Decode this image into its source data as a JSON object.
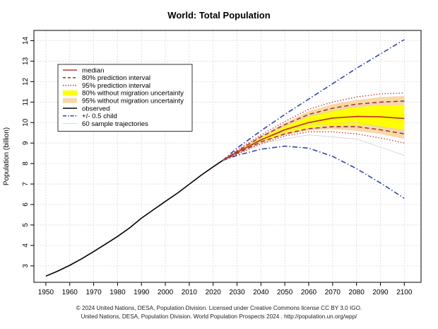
{
  "chart_data": {
    "type": "line",
    "title": "World: Total Population",
    "xlabel": "",
    "ylabel": "Population (billion)",
    "xlim": [
      1945,
      2107
    ],
    "ylim": [
      2.2,
      14.5
    ],
    "x_ticks": [
      1950,
      1960,
      1970,
      1980,
      1990,
      2000,
      2010,
      2020,
      2030,
      2040,
      2050,
      2060,
      2070,
      2080,
      2090,
      2100
    ],
    "y_ticks": [
      3,
      4,
      5,
      6,
      7,
      8,
      9,
      10,
      11,
      12,
      13,
      14
    ],
    "grid": true,
    "legend_position": "top-left",
    "colors": {
      "median": "#c0392b",
      "pi80": "#a0281e",
      "pi95": "#c0392b",
      "band80": "#ffff00",
      "band95": "#f9d7a6",
      "observed": "#000000",
      "half_child": "#3344aa",
      "trajectories": "#cccccc"
    },
    "legend": [
      {
        "label": "median",
        "style": "solid",
        "key": "median"
      },
      {
        "label": "80% prediction interval",
        "style": "dashed",
        "key": "pi80"
      },
      {
        "label": "95% prediction interval",
        "style": "dotted",
        "key": "pi95"
      },
      {
        "label": "80% without migration uncertainty",
        "style": "band",
        "key": "band80"
      },
      {
        "label": "95% without migration uncertainty",
        "style": "band",
        "key": "band95"
      },
      {
        "label": "observed",
        "style": "solid",
        "key": "observed"
      },
      {
        "label": "+/- 0.5 child",
        "style": "dashdot",
        "key": "half_child"
      },
      {
        "label": "60 sample trajectories",
        "style": "thin",
        "key": "trajectories"
      }
    ],
    "series": [
      {
        "name": "observed",
        "x": [
          1950,
          1955,
          1960,
          1965,
          1970,
          1975,
          1980,
          1985,
          1990,
          1995,
          2000,
          2005,
          2010,
          2015,
          2020,
          2024
        ],
        "values": [
          2.5,
          2.75,
          3.03,
          3.35,
          3.7,
          4.07,
          4.44,
          4.85,
          5.33,
          5.74,
          6.15,
          6.55,
          6.99,
          7.43,
          7.84,
          8.15
        ]
      },
      {
        "name": "median",
        "x": [
          2024,
          2030,
          2040,
          2050,
          2060,
          2070,
          2080,
          2090,
          2100
        ],
        "values": [
          8.15,
          8.55,
          9.15,
          9.65,
          10.0,
          10.22,
          10.3,
          10.28,
          10.2
        ]
      },
      {
        "name": "80% prediction interval upper",
        "x": [
          2024,
          2030,
          2040,
          2050,
          2060,
          2070,
          2080,
          2090,
          2100
        ],
        "values": [
          8.15,
          8.6,
          9.3,
          9.9,
          10.4,
          10.7,
          10.9,
          11.0,
          11.05
        ]
      },
      {
        "name": "80% prediction interval lower",
        "x": [
          2024,
          2030,
          2040,
          2050,
          2060,
          2070,
          2080,
          2090,
          2100
        ],
        "values": [
          8.15,
          8.5,
          9.05,
          9.45,
          9.7,
          9.8,
          9.8,
          9.65,
          9.45
        ]
      },
      {
        "name": "95% prediction interval upper",
        "x": [
          2024,
          2030,
          2040,
          2050,
          2060,
          2070,
          2080,
          2090,
          2100
        ],
        "values": [
          8.15,
          8.65,
          9.4,
          10.05,
          10.65,
          11.0,
          11.25,
          11.4,
          11.45
        ]
      },
      {
        "name": "95% prediction interval lower",
        "x": [
          2024,
          2030,
          2040,
          2050,
          2060,
          2070,
          2080,
          2090,
          2100
        ],
        "values": [
          8.15,
          8.45,
          8.95,
          9.35,
          9.55,
          9.55,
          9.45,
          9.25,
          9.0
        ]
      },
      {
        "name": "80% without migration uncertainty upper",
        "x": [
          2024,
          2030,
          2040,
          2050,
          2060,
          2070,
          2080,
          2090,
          2100
        ],
        "values": [
          8.15,
          8.58,
          9.25,
          9.82,
          10.3,
          10.6,
          10.75,
          10.82,
          10.85
        ]
      },
      {
        "name": "80% without migration uncertainty lower",
        "x": [
          2024,
          2030,
          2040,
          2050,
          2060,
          2070,
          2080,
          2090,
          2100
        ],
        "values": [
          8.15,
          8.52,
          9.07,
          9.5,
          9.75,
          9.88,
          9.9,
          9.8,
          9.65
        ]
      },
      {
        "name": "95% without migration uncertainty upper",
        "x": [
          2024,
          2030,
          2040,
          2050,
          2060,
          2070,
          2080,
          2090,
          2100
        ],
        "values": [
          8.15,
          8.62,
          9.35,
          9.98,
          10.55,
          10.9,
          11.1,
          11.25,
          11.3
        ]
      },
      {
        "name": "95% without migration uncertainty lower",
        "x": [
          2024,
          2030,
          2040,
          2050,
          2060,
          2070,
          2080,
          2090,
          2100
        ],
        "values": [
          8.15,
          8.48,
          8.98,
          9.4,
          9.62,
          9.68,
          9.6,
          9.45,
          9.2
        ]
      },
      {
        "name": "+0.5 child",
        "x": [
          2024,
          2030,
          2040,
          2050,
          2060,
          2070,
          2080,
          2090,
          2100
        ],
        "values": [
          8.15,
          8.75,
          9.6,
          10.4,
          11.15,
          11.9,
          12.65,
          13.35,
          14.05
        ]
      },
      {
        "name": "-0.5 child",
        "x": [
          2024,
          2030,
          2040,
          2050,
          2060,
          2070,
          2080,
          2090,
          2100
        ],
        "values": [
          8.15,
          8.4,
          8.7,
          8.85,
          8.75,
          8.35,
          7.75,
          7.05,
          6.3
        ]
      },
      {
        "name": "sample trajectory",
        "x": [
          2024,
          2040,
          2060,
          2080,
          2100
        ],
        "values": [
          8.15,
          9.0,
          9.4,
          9.2,
          8.4
        ]
      },
      {
        "name": "sample trajectory",
        "x": [
          2024,
          2040,
          2060,
          2080,
          2100
        ],
        "values": [
          8.15,
          9.2,
          9.9,
          10.0,
          9.6
        ]
      },
      {
        "name": "sample trajectory",
        "x": [
          2024,
          2040,
          2060,
          2080,
          2100
        ],
        "values": [
          8.15,
          9.35,
          10.3,
          10.8,
          11.1
        ]
      },
      {
        "name": "sample trajectory",
        "x": [
          2024,
          2040,
          2060,
          2080,
          2100
        ],
        "values": [
          8.15,
          9.1,
          9.7,
          9.8,
          9.5
        ]
      }
    ]
  },
  "footer": {
    "line1": "© 2024 United Nations, DESA, Population Division. Licensed under Creative Commons license CC BY 3.0 IGO.",
    "line2": "United Nations, DESA, Population Division. World Population Prospects 2024 . http://population.un.org/wpp/"
  }
}
